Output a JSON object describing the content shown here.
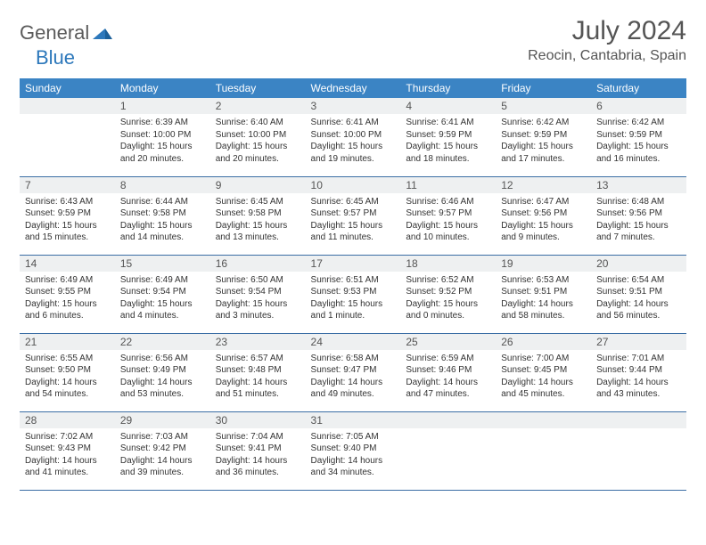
{
  "logo": {
    "word1": "General",
    "word2": "Blue"
  },
  "title": "July 2024",
  "location": "Reocin, Cantabria, Spain",
  "colors": {
    "header_bg": "#3b84c4",
    "header_fg": "#ffffff",
    "daynum_bg": "#eef0f1",
    "rule": "#3b6ea5",
    "text": "#333333",
    "title_fg": "#555555",
    "logo_gray": "#5a5a5a",
    "logo_blue": "#2d78bb"
  },
  "day_headers": [
    "Sunday",
    "Monday",
    "Tuesday",
    "Wednesday",
    "Thursday",
    "Friday",
    "Saturday"
  ],
  "weeks": [
    [
      {
        "n": "",
        "lines": []
      },
      {
        "n": "1",
        "lines": [
          "Sunrise: 6:39 AM",
          "Sunset: 10:00 PM",
          "Daylight: 15 hours",
          "and 20 minutes."
        ]
      },
      {
        "n": "2",
        "lines": [
          "Sunrise: 6:40 AM",
          "Sunset: 10:00 PM",
          "Daylight: 15 hours",
          "and 20 minutes."
        ]
      },
      {
        "n": "3",
        "lines": [
          "Sunrise: 6:41 AM",
          "Sunset: 10:00 PM",
          "Daylight: 15 hours",
          "and 19 minutes."
        ]
      },
      {
        "n": "4",
        "lines": [
          "Sunrise: 6:41 AM",
          "Sunset: 9:59 PM",
          "Daylight: 15 hours",
          "and 18 minutes."
        ]
      },
      {
        "n": "5",
        "lines": [
          "Sunrise: 6:42 AM",
          "Sunset: 9:59 PM",
          "Daylight: 15 hours",
          "and 17 minutes."
        ]
      },
      {
        "n": "6",
        "lines": [
          "Sunrise: 6:42 AM",
          "Sunset: 9:59 PM",
          "Daylight: 15 hours",
          "and 16 minutes."
        ]
      }
    ],
    [
      {
        "n": "7",
        "lines": [
          "Sunrise: 6:43 AM",
          "Sunset: 9:59 PM",
          "Daylight: 15 hours",
          "and 15 minutes."
        ]
      },
      {
        "n": "8",
        "lines": [
          "Sunrise: 6:44 AM",
          "Sunset: 9:58 PM",
          "Daylight: 15 hours",
          "and 14 minutes."
        ]
      },
      {
        "n": "9",
        "lines": [
          "Sunrise: 6:45 AM",
          "Sunset: 9:58 PM",
          "Daylight: 15 hours",
          "and 13 minutes."
        ]
      },
      {
        "n": "10",
        "lines": [
          "Sunrise: 6:45 AM",
          "Sunset: 9:57 PM",
          "Daylight: 15 hours",
          "and 11 minutes."
        ]
      },
      {
        "n": "11",
        "lines": [
          "Sunrise: 6:46 AM",
          "Sunset: 9:57 PM",
          "Daylight: 15 hours",
          "and 10 minutes."
        ]
      },
      {
        "n": "12",
        "lines": [
          "Sunrise: 6:47 AM",
          "Sunset: 9:56 PM",
          "Daylight: 15 hours",
          "and 9 minutes."
        ]
      },
      {
        "n": "13",
        "lines": [
          "Sunrise: 6:48 AM",
          "Sunset: 9:56 PM",
          "Daylight: 15 hours",
          "and 7 minutes."
        ]
      }
    ],
    [
      {
        "n": "14",
        "lines": [
          "Sunrise: 6:49 AM",
          "Sunset: 9:55 PM",
          "Daylight: 15 hours",
          "and 6 minutes."
        ]
      },
      {
        "n": "15",
        "lines": [
          "Sunrise: 6:49 AM",
          "Sunset: 9:54 PM",
          "Daylight: 15 hours",
          "and 4 minutes."
        ]
      },
      {
        "n": "16",
        "lines": [
          "Sunrise: 6:50 AM",
          "Sunset: 9:54 PM",
          "Daylight: 15 hours",
          "and 3 minutes."
        ]
      },
      {
        "n": "17",
        "lines": [
          "Sunrise: 6:51 AM",
          "Sunset: 9:53 PM",
          "Daylight: 15 hours",
          "and 1 minute."
        ]
      },
      {
        "n": "18",
        "lines": [
          "Sunrise: 6:52 AM",
          "Sunset: 9:52 PM",
          "Daylight: 15 hours",
          "and 0 minutes."
        ]
      },
      {
        "n": "19",
        "lines": [
          "Sunrise: 6:53 AM",
          "Sunset: 9:51 PM",
          "Daylight: 14 hours",
          "and 58 minutes."
        ]
      },
      {
        "n": "20",
        "lines": [
          "Sunrise: 6:54 AM",
          "Sunset: 9:51 PM",
          "Daylight: 14 hours",
          "and 56 minutes."
        ]
      }
    ],
    [
      {
        "n": "21",
        "lines": [
          "Sunrise: 6:55 AM",
          "Sunset: 9:50 PM",
          "Daylight: 14 hours",
          "and 54 minutes."
        ]
      },
      {
        "n": "22",
        "lines": [
          "Sunrise: 6:56 AM",
          "Sunset: 9:49 PM",
          "Daylight: 14 hours",
          "and 53 minutes."
        ]
      },
      {
        "n": "23",
        "lines": [
          "Sunrise: 6:57 AM",
          "Sunset: 9:48 PM",
          "Daylight: 14 hours",
          "and 51 minutes."
        ]
      },
      {
        "n": "24",
        "lines": [
          "Sunrise: 6:58 AM",
          "Sunset: 9:47 PM",
          "Daylight: 14 hours",
          "and 49 minutes."
        ]
      },
      {
        "n": "25",
        "lines": [
          "Sunrise: 6:59 AM",
          "Sunset: 9:46 PM",
          "Daylight: 14 hours",
          "and 47 minutes."
        ]
      },
      {
        "n": "26",
        "lines": [
          "Sunrise: 7:00 AM",
          "Sunset: 9:45 PM",
          "Daylight: 14 hours",
          "and 45 minutes."
        ]
      },
      {
        "n": "27",
        "lines": [
          "Sunrise: 7:01 AM",
          "Sunset: 9:44 PM",
          "Daylight: 14 hours",
          "and 43 minutes."
        ]
      }
    ],
    [
      {
        "n": "28",
        "lines": [
          "Sunrise: 7:02 AM",
          "Sunset: 9:43 PM",
          "Daylight: 14 hours",
          "and 41 minutes."
        ]
      },
      {
        "n": "29",
        "lines": [
          "Sunrise: 7:03 AM",
          "Sunset: 9:42 PM",
          "Daylight: 14 hours",
          "and 39 minutes."
        ]
      },
      {
        "n": "30",
        "lines": [
          "Sunrise: 7:04 AM",
          "Sunset: 9:41 PM",
          "Daylight: 14 hours",
          "and 36 minutes."
        ]
      },
      {
        "n": "31",
        "lines": [
          "Sunrise: 7:05 AM",
          "Sunset: 9:40 PM",
          "Daylight: 14 hours",
          "and 34 minutes."
        ]
      },
      {
        "n": "",
        "lines": []
      },
      {
        "n": "",
        "lines": []
      },
      {
        "n": "",
        "lines": []
      }
    ]
  ]
}
